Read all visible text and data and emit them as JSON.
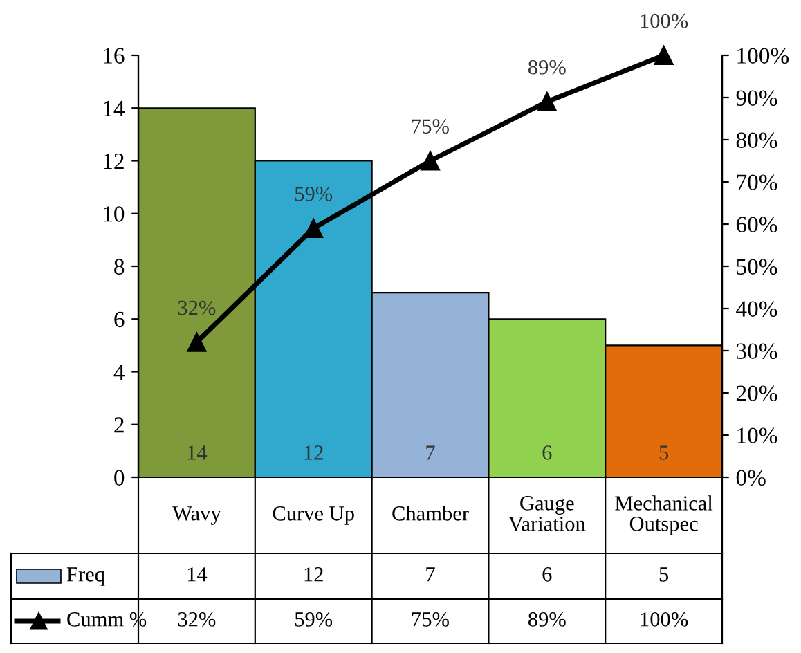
{
  "chart_data": {
    "type": "bar",
    "categories": [
      "Wavy",
      "Curve Up",
      "Chamber",
      "Gauge Variation",
      "Mechanical Outspec"
    ],
    "series": [
      {
        "name": "Freq",
        "color": "#95b3d7",
        "colors": [
          "#7f9a3a",
          "#31a9cf",
          "#95b3d7",
          "#92d050",
          "#e36c0a"
        ],
        "values": [
          14,
          12,
          7,
          6,
          5
        ],
        "value_labels": [
          "14",
          "12",
          "7",
          "6",
          "5"
        ]
      },
      {
        "name": "Cumm %",
        "type": "line",
        "axis": "y2",
        "color": "#000000",
        "marker": "triangle",
        "values": [
          32,
          59,
          75,
          89,
          100
        ],
        "value_labels": [
          "32%",
          "59%",
          "75%",
          "89%",
          "100%"
        ]
      }
    ],
    "ylim": [
      0,
      16
    ],
    "yticks": [
      0,
      2,
      4,
      6,
      8,
      10,
      12,
      14,
      16
    ],
    "y2lim": [
      0,
      100
    ],
    "y2ticks": [
      {
        "value": 0,
        "label": "0%"
      },
      {
        "value": 10,
        "label": "10%"
      },
      {
        "value": 20,
        "label": "20%"
      },
      {
        "value": 30,
        "label": "30%"
      },
      {
        "value": 40,
        "label": "40%"
      },
      {
        "value": 50,
        "label": "50%"
      },
      {
        "value": 60,
        "label": "60%"
      },
      {
        "value": 70,
        "label": "70%"
      },
      {
        "value": 80,
        "label": "80%"
      },
      {
        "value": 90,
        "label": "90%"
      },
      {
        "value": 100,
        "label": "100%"
      }
    ],
    "grid": false,
    "legend": "bottom left"
  }
}
